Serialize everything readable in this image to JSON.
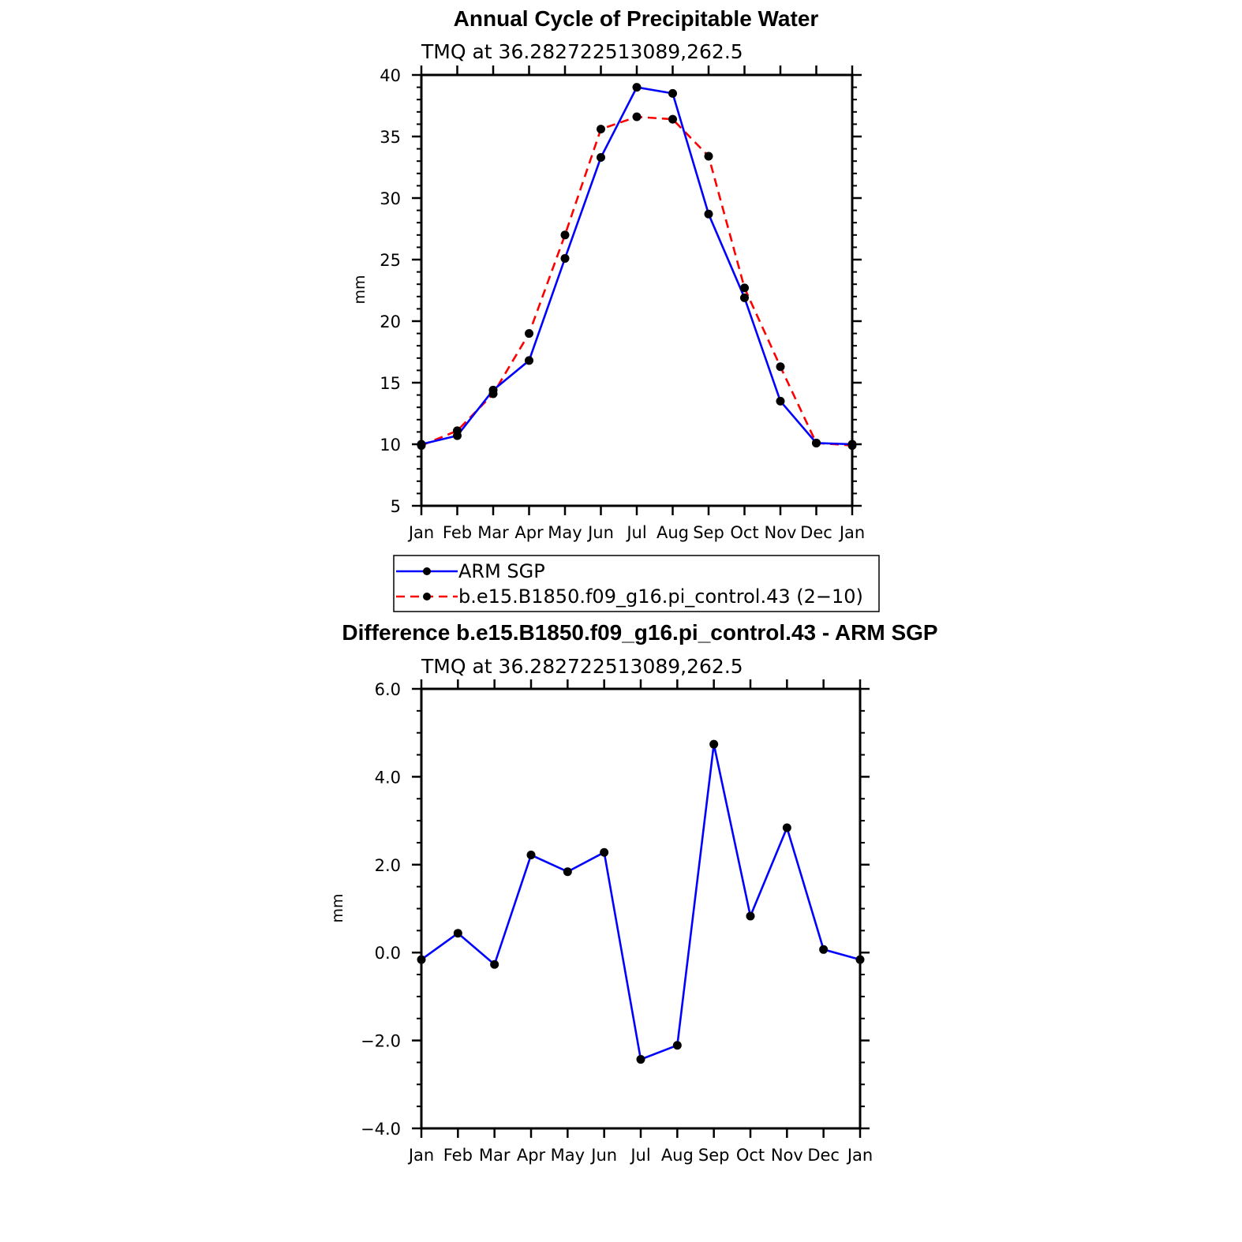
{
  "chart_data": [
    {
      "type": "line",
      "title": "Annual Cycle of Precipitable Water",
      "subtitle": "TMQ at 36.282722513089,262.5",
      "xlabel": "",
      "ylabel": "mm",
      "categories": [
        "Jan",
        "Feb",
        "Mar",
        "Apr",
        "May",
        "Jun",
        "Jul",
        "Aug",
        "Sep",
        "Oct",
        "Nov",
        "Dec",
        "Jan"
      ],
      "ylim": [
        5,
        40
      ],
      "yticks": [
        "5",
        "10",
        "15",
        "20",
        "25",
        "30",
        "35",
        "40"
      ],
      "series": [
        {
          "name": "ARM SGP",
          "color": "#0000ff",
          "dash": "solid",
          "values": [
            10.0,
            10.7,
            14.4,
            16.8,
            25.1,
            33.3,
            39.0,
            38.5,
            28.7,
            21.9,
            13.5,
            10.1,
            10.0
          ]
        },
        {
          "name": "b.e15.B1850.f09_g16.pi_control.43 (2−10)",
          "color": "#ff0000",
          "dash": "dashed",
          "values": [
            9.9,
            11.1,
            14.1,
            19.0,
            27.0,
            35.6,
            36.6,
            36.4,
            33.4,
            22.7,
            16.3,
            10.1,
            9.9
          ]
        }
      ],
      "legend": "below"
    },
    {
      "type": "line",
      "title": "Difference b.e15.B1850.f09_g16.pi_control.43 - ARM SGP",
      "subtitle": "TMQ at 36.282722513089,262.5",
      "xlabel": "",
      "ylabel": "mm",
      "categories": [
        "Jan",
        "Feb",
        "Mar",
        "Apr",
        "May",
        "Jun",
        "Jul",
        "Aug",
        "Sep",
        "Oct",
        "Nov",
        "Dec",
        "Jan"
      ],
      "ylim": [
        -4.0,
        6.0
      ],
      "yticks": [
        "−4.0",
        "−2.0",
        "0.0",
        "2.0",
        "4.0",
        "6.0"
      ],
      "series": [
        {
          "name": "Difference",
          "color": "#0000ff",
          "dash": "solid",
          "values": [
            -0.16,
            0.44,
            -0.27,
            2.22,
            1.84,
            2.28,
            -2.43,
            -2.11,
            4.74,
            0.83,
            2.84,
            0.07,
            -0.16
          ]
        }
      ]
    }
  ]
}
